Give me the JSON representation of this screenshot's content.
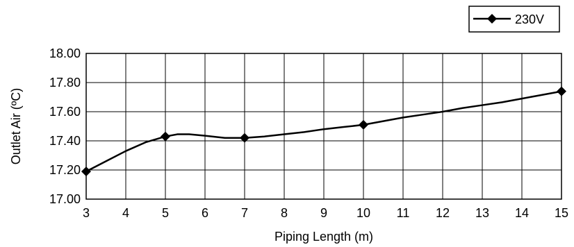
{
  "chart_data": {
    "type": "line",
    "xlabel": "Piping Length (m)",
    "ylabel": "Outlet Air (ºC)",
    "xlim": [
      3,
      15
    ],
    "ylim": [
      17.0,
      18.0
    ],
    "x_ticks": [
      "3",
      "4",
      "5",
      "6",
      "7",
      "8",
      "9",
      "10",
      "11",
      "12",
      "13",
      "14",
      "15"
    ],
    "y_ticks": [
      "17.00",
      "17.20",
      "17.40",
      "17.60",
      "17.80",
      "18.00"
    ],
    "grid": true,
    "legend_position": "top-right",
    "series": [
      {
        "name": "230V",
        "color": "#000000",
        "marker": "diamond",
        "markers_x": [
          3,
          5,
          7,
          10,
          15
        ],
        "markers_y": [
          17.19,
          17.43,
          17.42,
          17.51,
          17.74
        ],
        "x": [
          3,
          3.5,
          4,
          4.5,
          5,
          5.3,
          5.6,
          6,
          6.5,
          7,
          7.5,
          8,
          8.5,
          9,
          9.5,
          10,
          10.5,
          11,
          11.5,
          12,
          12.5,
          13,
          13.5,
          14,
          14.5,
          15
        ],
        "y": [
          17.19,
          17.26,
          17.33,
          17.39,
          17.43,
          17.445,
          17.445,
          17.435,
          17.42,
          17.42,
          17.43,
          17.445,
          17.46,
          17.48,
          17.495,
          17.51,
          17.535,
          17.56,
          17.58,
          17.6,
          17.625,
          17.645,
          17.665,
          17.69,
          17.715,
          17.74
        ]
      }
    ]
  }
}
